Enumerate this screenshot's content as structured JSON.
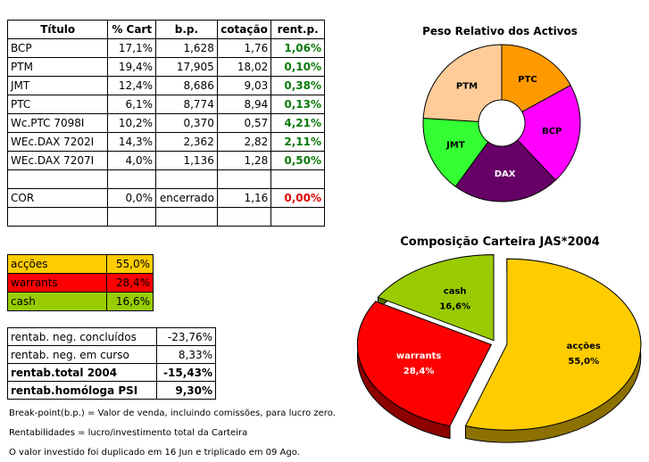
{
  "portfolio": {
    "headers": [
      "Título",
      "% Cart",
      "b.p.",
      "cotação",
      "rent.p."
    ],
    "rows": [
      {
        "titulo": "BCP",
        "cart": "17,1%",
        "bp": "1,628",
        "cotacao": "1,76",
        "rent": "1,06%",
        "rent_color": "#0a7a0a"
      },
      {
        "titulo": "PTM",
        "cart": "19,4%",
        "bp": "17,905",
        "cotacao": "18,02",
        "rent": "0,10%",
        "rent_color": "#0a7a0a"
      },
      {
        "titulo": "JMT",
        "cart": "12,4%",
        "bp": "8,686",
        "cotacao": "9,03",
        "rent": "0,38%",
        "rent_color": "#0a7a0a"
      },
      {
        "titulo": "PTC",
        "cart": "6,1%",
        "bp": "8,774",
        "cotacao": "8,94",
        "rent": "0,13%",
        "rent_color": "#0a7a0a"
      },
      {
        "titulo": "Wc.PTC 7098I",
        "cart": "10,2%",
        "bp": "0,370",
        "cotacao": "0,57",
        "rent": "4,21%",
        "rent_color": "#0a7a0a"
      },
      {
        "titulo": "WEc.DAX 7202I",
        "cart": "14,3%",
        "bp": "2,362",
        "cotacao": "2,82",
        "rent": "2,11%",
        "rent_color": "#0a7a0a"
      },
      {
        "titulo": "WEc.DAX 7207I",
        "cart": "4,0%",
        "bp": "1,136",
        "cotacao": "1,28",
        "rent": "0,50%",
        "rent_color": "#0a7a0a"
      }
    ],
    "cor": {
      "titulo": "COR",
      "cart": "0,0%",
      "bp": "encerrado",
      "cotacao": "1,16",
      "rent": "0,00%"
    }
  },
  "composition": [
    {
      "label": "acções",
      "value": "55,0%",
      "color": "#ffcc00"
    },
    {
      "label": "warrants",
      "value": "28,4%",
      "color": "#ff0000"
    },
    {
      "label": "cash",
      "value": "16,6%",
      "color": "#99cc00"
    }
  ],
  "summary": [
    {
      "label": "rentab. neg. concluídos",
      "value": "-23,76%",
      "bold": false
    },
    {
      "label": "rentab. neg. em curso",
      "value": "8,33%",
      "bold": false
    },
    {
      "label": "rentab.total 2004",
      "value": "-15,43%",
      "bold": true
    },
    {
      "label": "rentab.homóloga PSI",
      "value": "9,30%",
      "bold": true
    }
  ],
  "notes": [
    "Break-point(b.p.) = Valor de venda, incluindo comissões, para lucro zero.",
    "Rentabilidades = lucro/investimento total da Carteira",
    "O valor investido foi duplicado em 16 Jun e triplicado em 09 Ago."
  ],
  "chart_data": [
    {
      "type": "pie",
      "variant": "doughnut",
      "title": "Peso Relativo dos Activos",
      "categories": [
        "PTC",
        "BCP",
        "DAX",
        "JMT",
        "PTM"
      ],
      "values": [
        17.0,
        21.0,
        22.0,
        16.0,
        24.0
      ],
      "colors": [
        "#ff9900",
        "#ff00ff",
        "#660066",
        "#33ff33",
        "#ffcc99"
      ],
      "legend": "none"
    },
    {
      "type": "pie",
      "variant": "3d-exploded",
      "title": "Composição Carteira JAS*2004",
      "categories": [
        "acções",
        "warrants",
        "cash"
      ],
      "values": [
        55.0,
        28.4,
        16.6
      ],
      "data_labels": [
        "acções\n55,0%",
        "warrants\n28,4%",
        "cash\n16,6%"
      ],
      "colors": [
        "#ffcc00",
        "#ff0000",
        "#99cc00"
      ],
      "legend": "none"
    }
  ]
}
